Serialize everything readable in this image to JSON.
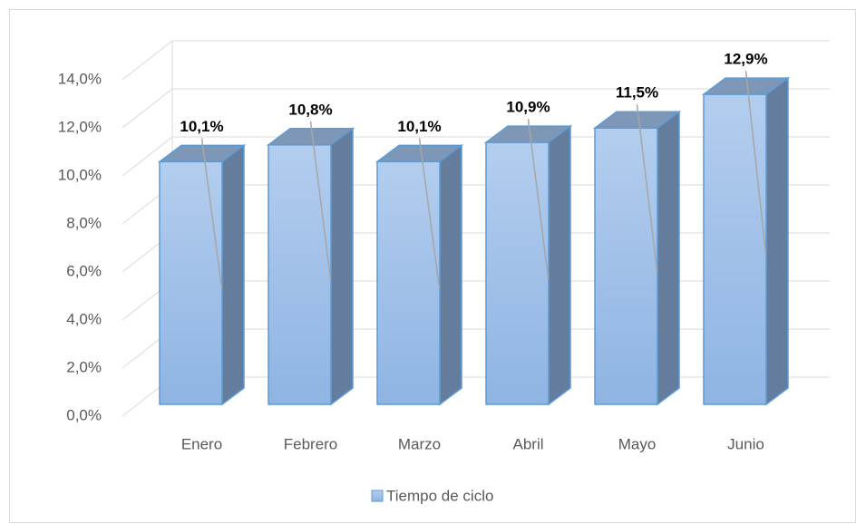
{
  "chart_data": {
    "type": "bar3d",
    "categories": [
      "Enero",
      "Febrero",
      "Marzo",
      "Abril",
      "Mayo",
      "Junio"
    ],
    "series": [
      {
        "name": "Tiempo de ciclo",
        "color": "#9dbde6",
        "values": [
          10.1,
          10.8,
          10.1,
          10.9,
          11.5,
          12.9
        ],
        "value_labels": [
          "10,1%",
          "10,8%",
          "10,1%",
          "10,9%",
          "11,5%",
          "12,9%"
        ]
      }
    ],
    "ylim": [
      0,
      14
    ],
    "yticks": [
      {
        "value": 0,
        "label": "0,0%"
      },
      {
        "value": 2,
        "label": "2,0%"
      },
      {
        "value": 4,
        "label": "4,0%"
      },
      {
        "value": 6,
        "label": "6,0%"
      },
      {
        "value": 8,
        "label": "8,0%"
      },
      {
        "value": 10,
        "label": "10,0%"
      },
      {
        "value": 12,
        "label": "12,0%"
      },
      {
        "value": 14,
        "label": "14,0%"
      }
    ],
    "grid": true,
    "legend": "bottom"
  }
}
